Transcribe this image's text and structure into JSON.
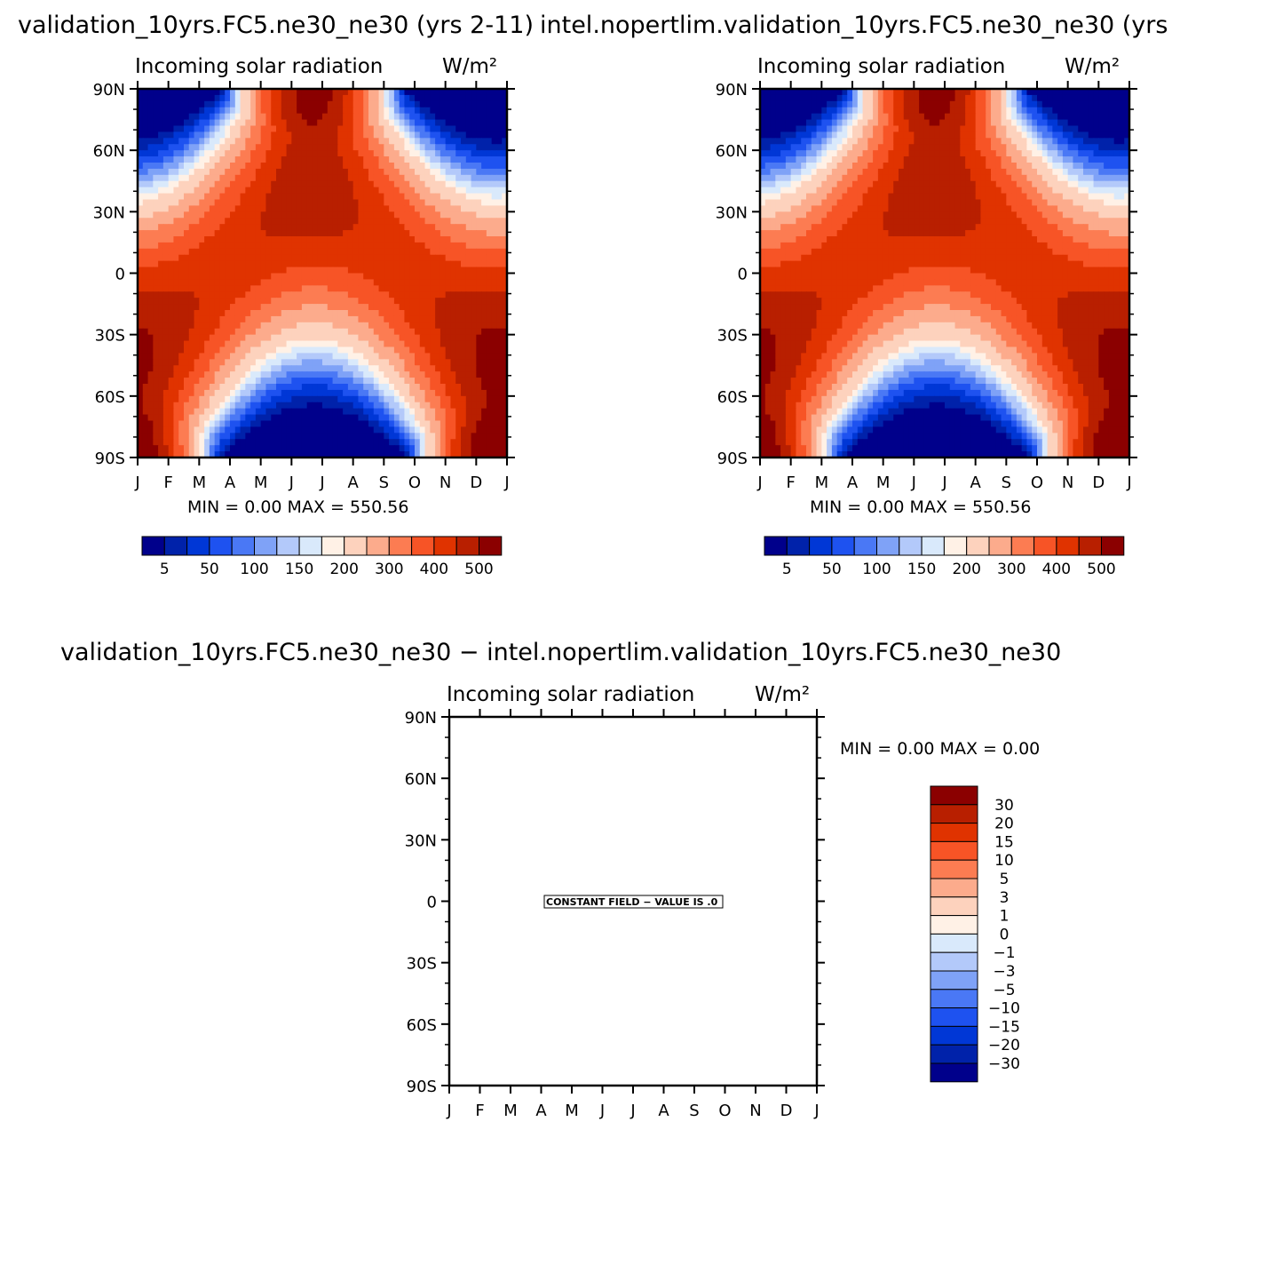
{
  "palette": [
    "#00008b",
    "#0022aa",
    "#0037d6",
    "#1e52f0",
    "#4a78f5",
    "#7fa2f7",
    "#b3c9fa",
    "#d9e9fb",
    "#fff1e6",
    "#fdd2bd",
    "#fcab8c",
    "#fc7c52",
    "#f75426",
    "#e03300",
    "#b81f00",
    "#8b0000"
  ],
  "chart_data": [
    {
      "type": "heatmap",
      "title": "validation_10yrs.FC5.ne30_ne30 (yrs 2-11)",
      "subtitle": "Incoming solar radiation",
      "units": "W/m²",
      "x_ticks": [
        "J",
        "F",
        "M",
        "A",
        "M",
        "J",
        "J",
        "A",
        "S",
        "O",
        "N",
        "D",
        "J"
      ],
      "y_ticks": [
        "90N",
        "60N",
        "30N",
        "0",
        "30S",
        "60S",
        "90S"
      ],
      "min_max": "MIN =    0.00  MAX = 550.56",
      "colorbar_labels": [
        "5",
        "50",
        "100",
        "150",
        "200",
        "300",
        "400",
        "500"
      ],
      "colorbar_levels": [
        5,
        25,
        50,
        75,
        100,
        125,
        150,
        175,
        200,
        250,
        300,
        350,
        400,
        450,
        500
      ],
      "min": 0.0,
      "max": 550.56
    },
    {
      "type": "heatmap",
      "title": "intel.nopertlim.validation_10yrs.FC5.ne30_ne30 (yrs",
      "subtitle": "Incoming solar radiation",
      "units": "W/m²",
      "x_ticks": [
        "J",
        "F",
        "M",
        "A",
        "M",
        "J",
        "J",
        "A",
        "S",
        "O",
        "N",
        "D",
        "J"
      ],
      "y_ticks": [
        "90N",
        "60N",
        "30N",
        "0",
        "30S",
        "60S",
        "90S"
      ],
      "min_max": "MIN =    0.00  MAX = 550.56",
      "colorbar_labels": [
        "5",
        "50",
        "100",
        "150",
        "200",
        "300",
        "400",
        "500"
      ],
      "colorbar_levels": [
        5,
        25,
        50,
        75,
        100,
        125,
        150,
        175,
        200,
        250,
        300,
        350,
        400,
        450,
        500
      ],
      "min": 0.0,
      "max": 550.56
    },
    {
      "type": "heatmap",
      "title": "validation_10yrs.FC5.ne30_ne30 − intel.nopertlim.validation_10yrs.FC5.ne30_ne30",
      "subtitle": "Incoming solar radiation",
      "units": "W/m²",
      "x_ticks": [
        "J",
        "F",
        "M",
        "A",
        "M",
        "J",
        "J",
        "A",
        "S",
        "O",
        "N",
        "D",
        "J"
      ],
      "y_ticks": [
        "90N",
        "60N",
        "30N",
        "0",
        "30S",
        "60S",
        "90S"
      ],
      "min_max": "MIN =    0.00  MAX =    0.00",
      "constant_field": "CONSTANT FIELD − VALUE IS .0",
      "colorbar_labels": [
        "30",
        "20",
        "15",
        "10",
        "5",
        "3",
        "1",
        "0",
        "−1",
        "−3",
        "−5",
        "−10",
        "−15",
        "−20",
        "−30"
      ],
      "min": 0.0,
      "max": 0.0
    }
  ]
}
